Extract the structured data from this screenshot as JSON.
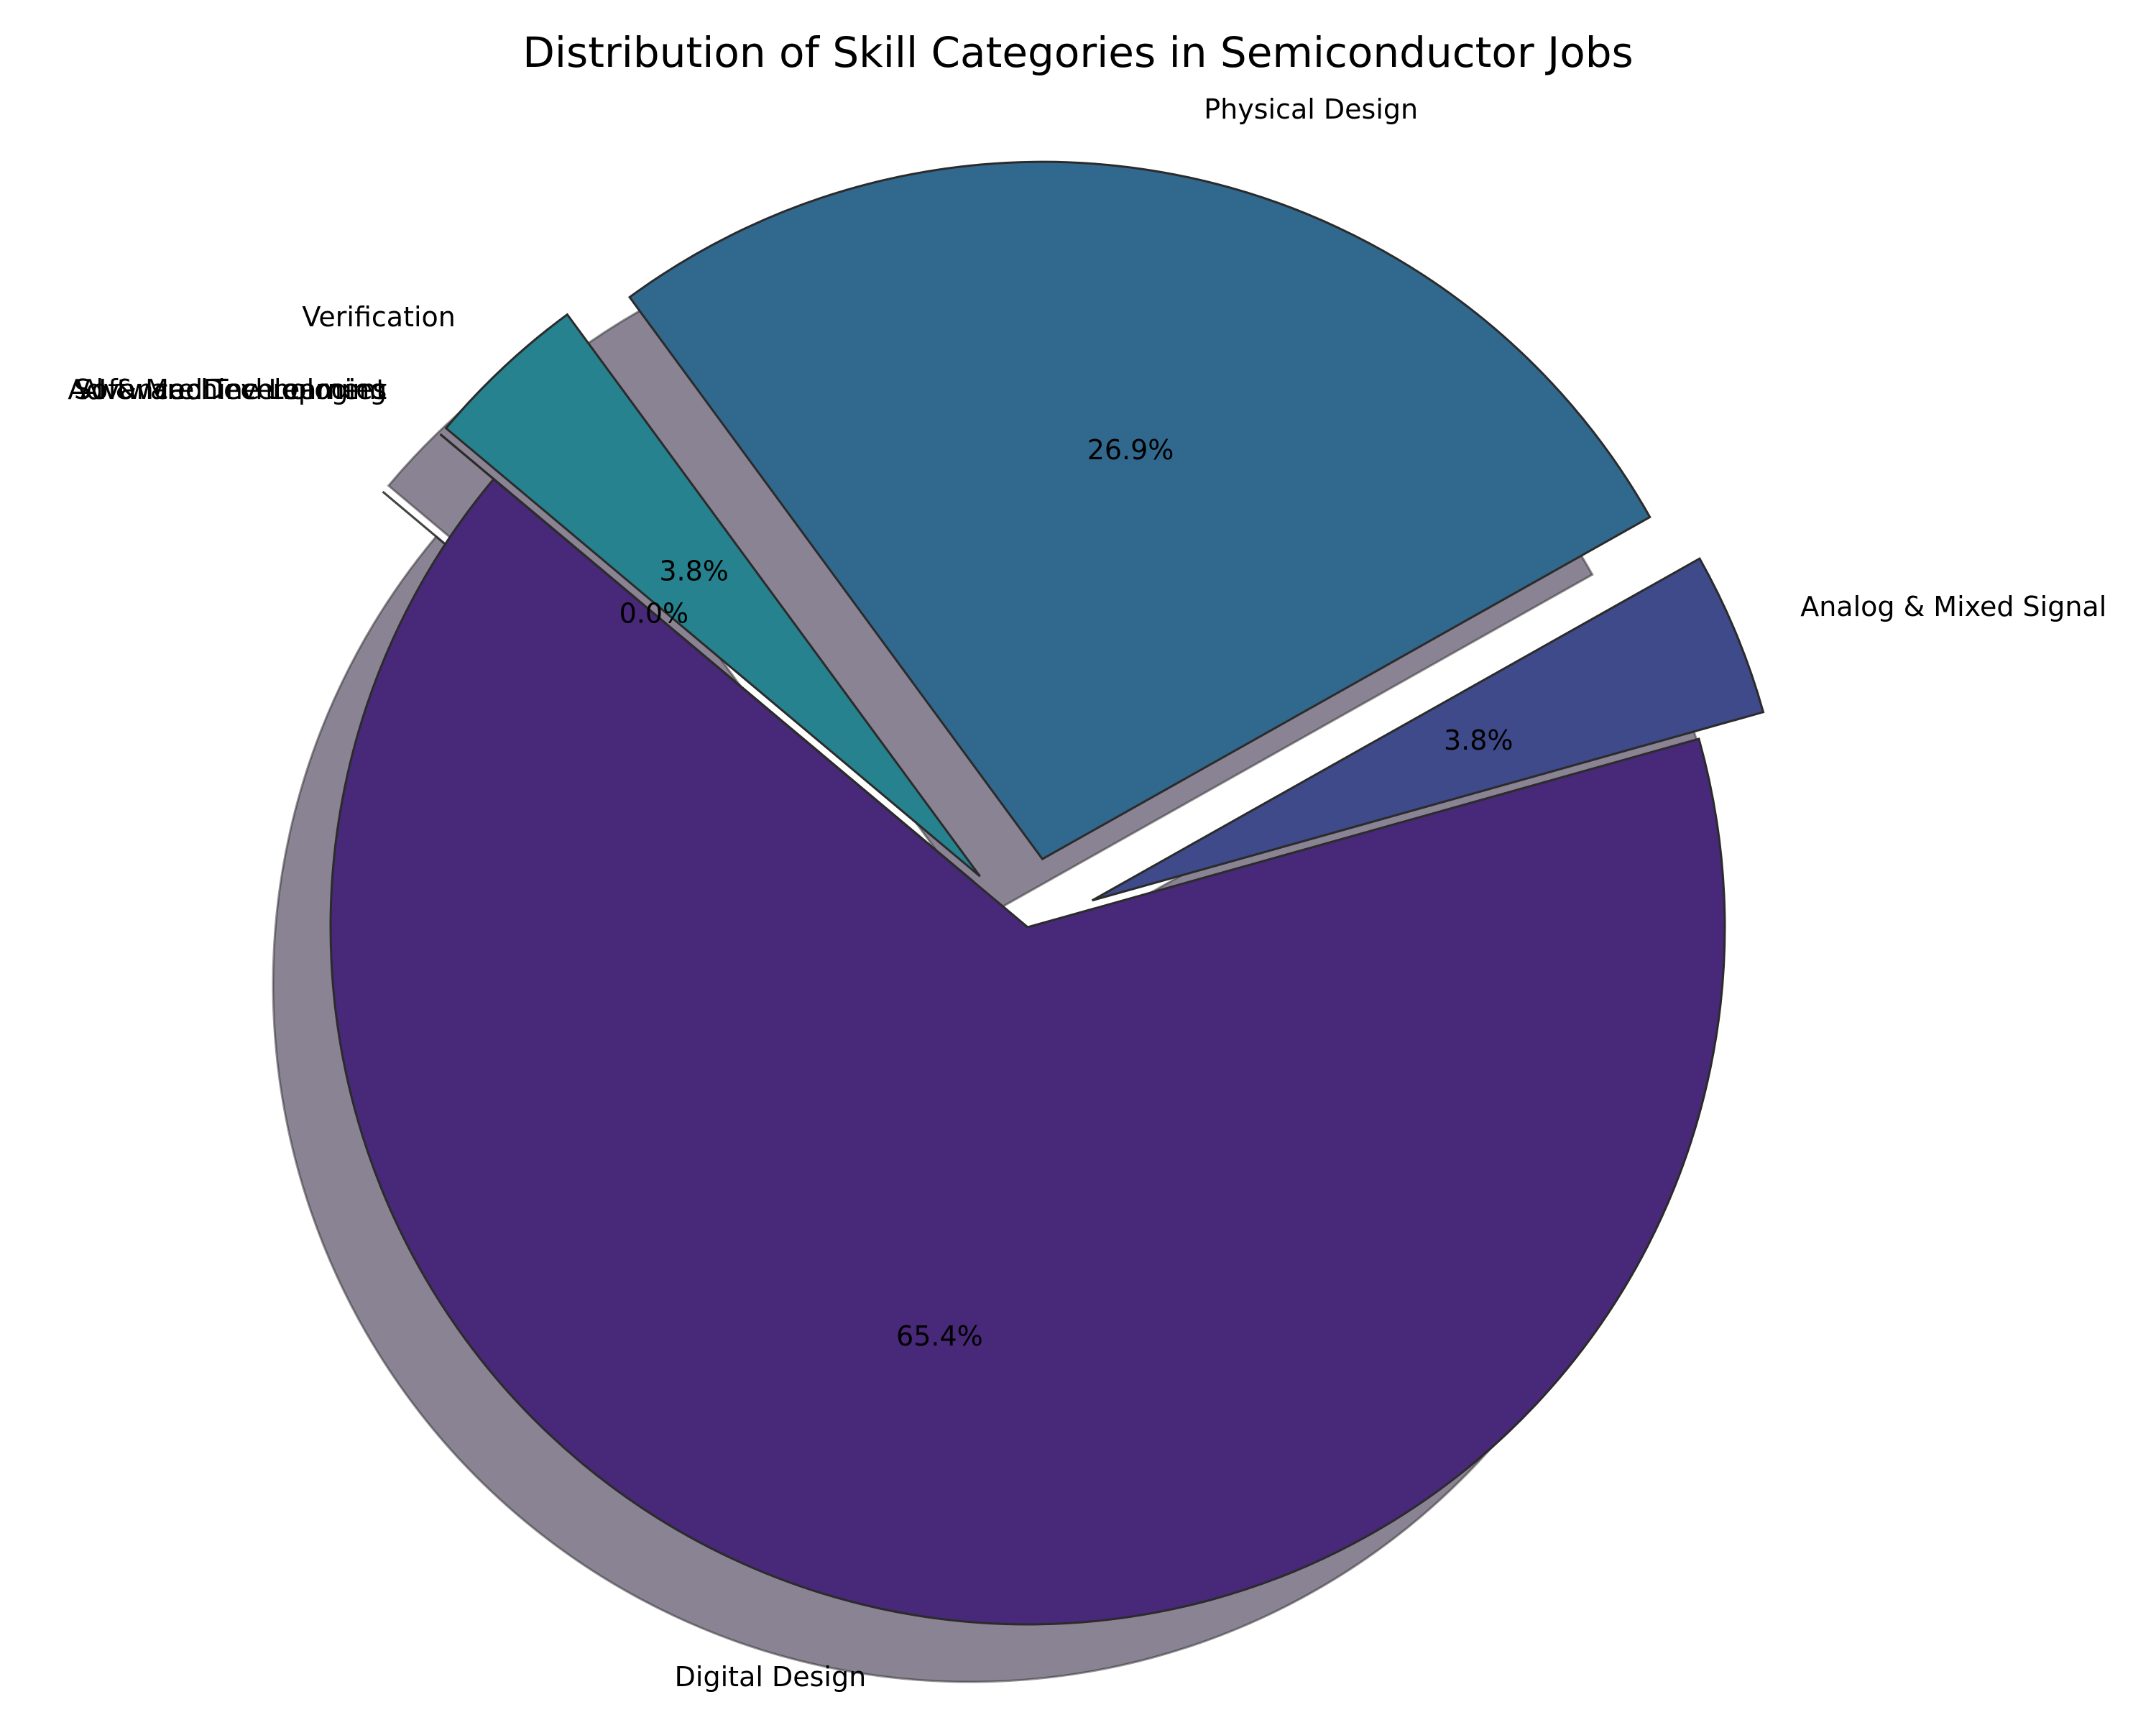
{
  "chart_data": {
    "type": "pie",
    "title": "Distribution of Skill Categories in Semiconductor Jobs",
    "slices": [
      {
        "name": "Digital Design",
        "value": 65.4,
        "color": "#482878",
        "explode": 0.0
      },
      {
        "name": "Analog & Mixed Signal",
        "value": 3.8,
        "color": "#3e4a89",
        "explode": 0.1
      },
      {
        "name": "Physical Design",
        "value": 26.9,
        "color": "#31688e",
        "explode": 0.1
      },
      {
        "name": "Verification",
        "value": 3.8,
        "color": "#26828e",
        "explode": 0.1
      },
      {
        "name": "Software Development",
        "value": 0.0,
        "color": "#1f9e89",
        "explode": 0.1
      },
      {
        "name": "AI & Machine Learning",
        "value": 0.0,
        "color": "#35b779",
        "explode": 0.1
      },
      {
        "name": "Advanced Technologies",
        "value": 0.0,
        "color": "#6ece58",
        "explode": 0.1
      }
    ],
    "start_angle_deg": 140,
    "direction": "counterclockwise",
    "shadow": true,
    "pct_labels": [
      "65.4%",
      "3.8%",
      "26.9%",
      "3.8%",
      "0.0%",
      "",
      ""
    ]
  }
}
